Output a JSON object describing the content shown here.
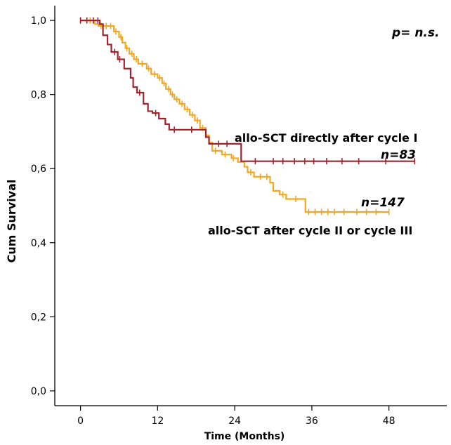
{
  "chart_data": {
    "type": "line",
    "subtype": "kaplan-meier",
    "xlabel": "Time (Months)",
    "ylabel": "Cum Survival",
    "xlim": [
      -4,
      57
    ],
    "ylim": [
      -0.04,
      1.04
    ],
    "xticks": [
      0,
      12,
      24,
      36,
      48
    ],
    "xtick_labels": [
      "0",
      "12",
      "24",
      "36",
      "48"
    ],
    "yticks": [
      0.0,
      0.2,
      0.4,
      0.6,
      0.8,
      1.0
    ],
    "ytick_labels": [
      "0,0",
      "0,2",
      "0,4",
      "0,6",
      "0,8",
      "1,0"
    ],
    "grid": false,
    "annotations": {
      "p_value": "p= n.s.",
      "label_direct": "allo-SCT directly after cycle I",
      "n_direct": "n=83",
      "n_later": "n=147",
      "label_later": "allo-SCT after cycle II or cycle III"
    },
    "series": [
      {
        "color": "#a0242c",
        "steps": [
          [
            0,
            1.0
          ],
          [
            3,
            0.99
          ],
          [
            3.5,
            0.96
          ],
          [
            4.2,
            0.935
          ],
          [
            4.8,
            0.915
          ],
          [
            5.8,
            0.895
          ],
          [
            6.8,
            0.87
          ],
          [
            7.8,
            0.845
          ],
          [
            8.2,
            0.82
          ],
          [
            8.8,
            0.805
          ],
          [
            9.8,
            0.775
          ],
          [
            10.5,
            0.755
          ],
          [
            11.2,
            0.75
          ],
          [
            12.2,
            0.735
          ],
          [
            13.2,
            0.72
          ],
          [
            13.8,
            0.705
          ],
          [
            19.5,
            0.685
          ],
          [
            20.0,
            0.667
          ],
          [
            25.0,
            0.62
          ],
          [
            52,
            0.62
          ]
        ],
        "censor": [
          0,
          1,
          2,
          2.7,
          5.3,
          6.1,
          9.2,
          11.7,
          14.6,
          17.3,
          21.5,
          22.8,
          27.2,
          30.0,
          31.5,
          33.3,
          34.9,
          36.3,
          38.3,
          40.7,
          43.3,
          47.5,
          52
        ]
      },
      {
        "color": "#f5a623",
        "steps": [
          [
            0,
            1.0
          ],
          [
            2.2,
            0.99
          ],
          [
            2.8,
            0.985
          ],
          [
            5.2,
            0.97
          ],
          [
            6.0,
            0.955
          ],
          [
            6.5,
            0.94
          ],
          [
            7.0,
            0.925
          ],
          [
            7.6,
            0.91
          ],
          [
            8.3,
            0.895
          ],
          [
            9.0,
            0.883
          ],
          [
            10.3,
            0.87
          ],
          [
            11.0,
            0.855
          ],
          [
            12.0,
            0.845
          ],
          [
            12.7,
            0.83
          ],
          [
            13.3,
            0.815
          ],
          [
            14.0,
            0.8
          ],
          [
            14.6,
            0.787
          ],
          [
            15.4,
            0.775
          ],
          [
            16.2,
            0.76
          ],
          [
            17.0,
            0.745
          ],
          [
            17.8,
            0.73
          ],
          [
            18.6,
            0.71
          ],
          [
            19.5,
            0.69
          ],
          [
            20.0,
            0.67
          ],
          [
            20.5,
            0.648
          ],
          [
            22.0,
            0.638
          ],
          [
            23.5,
            0.628
          ],
          [
            24.5,
            0.618
          ],
          [
            25.5,
            0.605
          ],
          [
            26.0,
            0.59
          ],
          [
            27.0,
            0.578
          ],
          [
            29.5,
            0.562
          ],
          [
            30.0,
            0.54
          ],
          [
            31.0,
            0.53
          ],
          [
            32.0,
            0.518
          ],
          [
            35.0,
            0.483
          ],
          [
            48.0,
            0.483
          ]
        ],
        "censor": [
          0,
          1.5,
          3.2,
          4.0,
          4.7,
          5.5,
          6.3,
          7.2,
          8.0,
          8.7,
          9.6,
          10.6,
          11.5,
          12.3,
          13.0,
          13.7,
          14.3,
          15.0,
          15.8,
          16.6,
          17.4,
          18.2,
          19.0,
          21.0,
          22.5,
          23.8,
          26.5,
          28.0,
          29.0,
          31.5,
          33.5,
          35.5,
          36.5,
          37.5,
          38.5,
          39.5,
          41.0,
          43.0,
          44.5,
          46.0,
          48.0
        ]
      }
    ]
  }
}
